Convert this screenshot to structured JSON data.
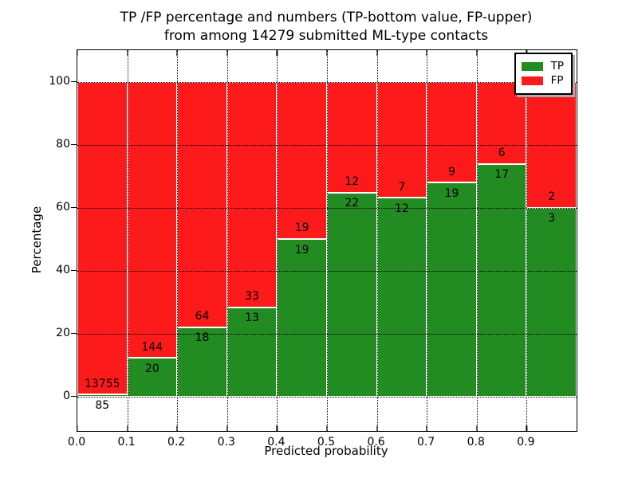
{
  "figure": {
    "title_line1": "TP /FP percentage and numbers (TP-bottom value, FP-upper)",
    "title_line2": "from among 14279 submitted ML-type contacts"
  },
  "axes": {
    "xlabel": "Predicted probability",
    "ylabel": "Percentage",
    "x_tick_labels": [
      "0.0",
      "0.1",
      "0.2",
      "0.3",
      "0.4",
      "0.5",
      "0.6",
      "0.7",
      "0.8",
      "0.9"
    ],
    "x_tick_values": [
      0.0,
      0.1,
      0.2,
      0.3,
      0.4,
      0.5,
      0.6,
      0.7,
      0.8,
      0.9
    ],
    "y_tick_labels": [
      "0",
      "20",
      "40",
      "60",
      "80",
      "100"
    ],
    "y_tick_values": [
      0,
      20,
      40,
      60,
      80,
      100
    ],
    "xlim": [
      0.0,
      1.0
    ],
    "ylim": [
      -11,
      110
    ],
    "grid": "dotted black, drawn above bars"
  },
  "legend": {
    "position": "upper right",
    "items": [
      {
        "label": "TP",
        "color": "#228B22"
      },
      {
        "label": "FP",
        "color": "#FC1A1A"
      }
    ]
  },
  "chart_data": {
    "type": "bar",
    "stacked": true,
    "normalized": "each bin scaled to 100%, TP bottom / FP top",
    "title": "TP /FP percentage and numbers (TP-bottom value, FP-upper) from among 14279 submitted ML-type contacts",
    "xlabel": "Predicted probability",
    "ylabel": "Percentage",
    "total_contacts": 14279,
    "bin_width": 0.1,
    "categories": [
      "0.0-0.1",
      "0.1-0.2",
      "0.2-0.3",
      "0.3-0.4",
      "0.4-0.5",
      "0.5-0.6",
      "0.6-0.7",
      "0.7-0.8",
      "0.8-0.9",
      "0.9-1.0"
    ],
    "bin_starts": [
      0.0,
      0.1,
      0.2,
      0.3,
      0.4,
      0.5,
      0.6,
      0.7,
      0.8,
      0.9
    ],
    "series": [
      {
        "name": "TP",
        "color": "#228B22",
        "counts": [
          85,
          20,
          18,
          13,
          19,
          22,
          12,
          19,
          17,
          3
        ]
      },
      {
        "name": "FP",
        "color": "#FC1A1A",
        "counts": [
          13755,
          144,
          64,
          33,
          19,
          12,
          7,
          9,
          6,
          2
        ]
      }
    ],
    "tp_percent": [
      0.61,
      12.2,
      21.95,
      28.26,
      50.0,
      64.71,
      63.16,
      67.86,
      73.91,
      60.0
    ],
    "ylim": [
      -11,
      110
    ],
    "legend_position": "upper right"
  }
}
